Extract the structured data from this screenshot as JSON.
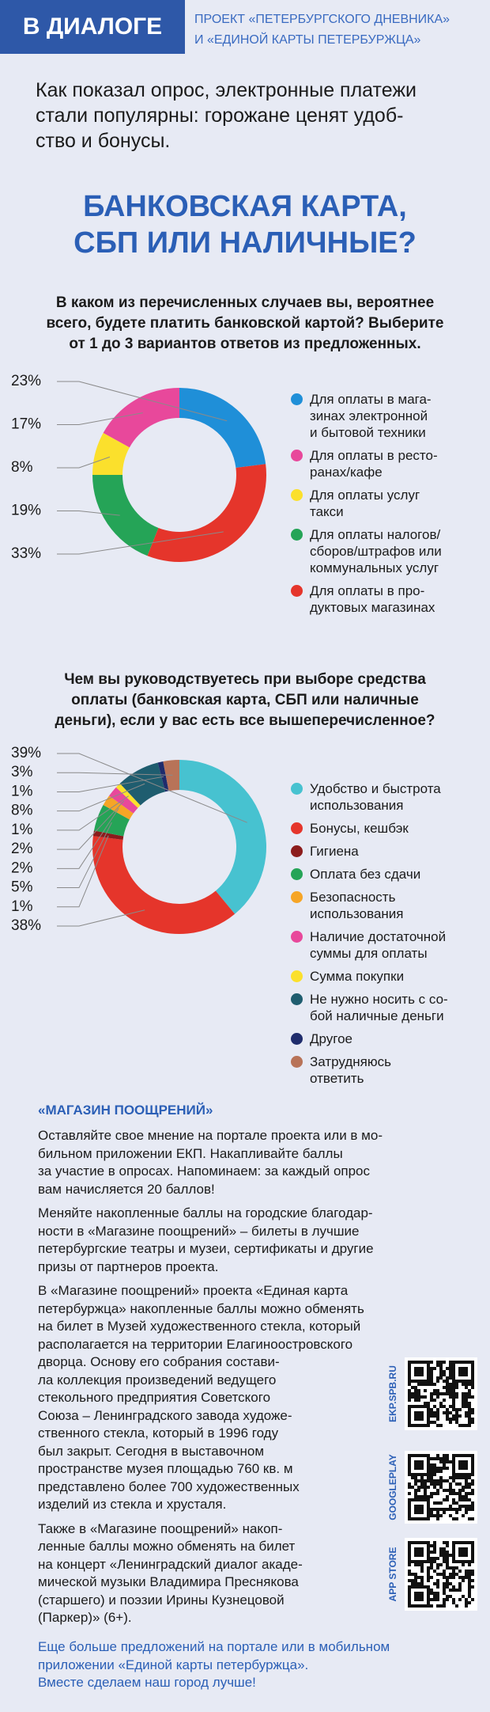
{
  "header": {
    "badge": "В ДИАЛОГЕ",
    "project": [
      "ПРОЕКТ «ПЕТЕРБУРГСКОГО ДНЕВНИКА»",
      "И «ЕДИНОЙ КАРТЫ ПЕТЕРБУРЖЦА»"
    ]
  },
  "intro": "Как показал опрос, электронные платежи\nстали популярны: горожане ценят удоб-\nство и бонусы.",
  "title": "БАНКОВСКАЯ КАРТА,\nСБП ИЛИ НАЛИЧНЫЕ?",
  "chart_data": [
    {
      "type": "pie",
      "title": "В каком из перечисленных случаев вы, вероятнее\nвсего, будете платить банковской картой? Выберите\nот 1 до 3 вариантов ответов из предложенных.",
      "categories": [
        "Для оплаты в мага-\nзинах электронной\nи бытовой техники",
        "Для оплаты в ресто-\nранах/кафе",
        "Для оплаты услуг\nтакси",
        "Для оплаты налогов/\nсборов/штрафов или\nкоммунальных услуг",
        "Для оплаты в про-\nдуктовых магазинах"
      ],
      "values": [
        23,
        17,
        8,
        19,
        33
      ],
      "value_labels": [
        "23%",
        "17%",
        "8%",
        "19%",
        "33%"
      ],
      "colors": [
        "#1f8fd8",
        "#e8489b",
        "#fbe02c",
        "#25a457",
        "#e5352b"
      ],
      "direction": "counterclockwise"
    },
    {
      "type": "pie",
      "title": "Чем вы руководствуетесь при выборе средства\nоплаты (банковская карта, СБП или наличные\nденьги), если у вас есть все вышеперечисленное?",
      "categories": [
        "Удобство и быстрота\nиспользования",
        "Бонусы, кешбэк",
        "Гигиена",
        "Оплата без сдачи",
        "Безопасность\nиспользования",
        "Наличие достаточной\nсуммы для оплаты",
        "Сумма покупки",
        "Не нужно носить с со-\nбой наличные деньги",
        "Другое",
        "Затрудняюсь\nответить"
      ],
      "values": [
        39,
        38,
        1,
        5,
        2,
        2,
        1,
        8,
        1,
        3
      ],
      "value_labels": [
        "39%",
        "38%",
        "1%",
        "5%",
        "2%",
        "2%",
        "1%",
        "8%",
        "1%",
        "3%"
      ],
      "colors": [
        "#47c2d0",
        "#e5352b",
        "#8c1c1c",
        "#25a457",
        "#f6a526",
        "#e8489b",
        "#fbe02c",
        "#1f5d6f",
        "#1f2c6c",
        "#b87358"
      ],
      "direction": "clockwise"
    }
  ],
  "shop": {
    "title": "«МАГАЗИН ПООЩРЕНИЙ»",
    "paragraphs": [
      "Оставляйте свое мнение на портале проекта или в мо-\nбильном приложении ЕКП. Накапливайте баллы\nза участие в опросах. Напоминаем: за каждый опрос\nвам начисляется 20 баллов!",
      "Меняйте накопленные баллы на городские благодар-\nности в «Магазине поощрений» – билеты в лучшие\nпетербургские театры и музеи, сертификаты и другие\nпризы от партнеров проекта.",
      "В «Магазине поощрений» проекта «Единая карта\nпетербуржца» накопленные баллы можно обменять\nна билет в Музей художественного стекла, который\nрасполагается на территории Елагиноостровского\nдворца. Основу его собрания состави-\nла коллекция произведений ведущего\nстекольного предприятия Советского\nСоюза – Ленинградского завода художе-\nственного стекла, который в 1996 году\nбыл закрыт. Сегодня в выставочном\nпространстве музея площадью 760 кв. м\nпредставлено более 700 художественных\nизделий из стекла и хрусталя.",
      "Также в «Магазине поощрений» накоп-\nленные баллы можно обменять на билет\nна концерт «Ленинградский диалог акаде-\nмической музыки Владимира Преснякова\n(старшего) и поэзии Ирины Кузнецовой\n(Паркер)» (6+)."
    ]
  },
  "qr": [
    "EKP.SPB.RU",
    "GOOGLEPLAY",
    "APP STORE"
  ],
  "footer": "Еще больше предложений на портале или в мобильном\nприложении «Единой карты петербуржца».\nВместе сделаем наш город лучше!"
}
